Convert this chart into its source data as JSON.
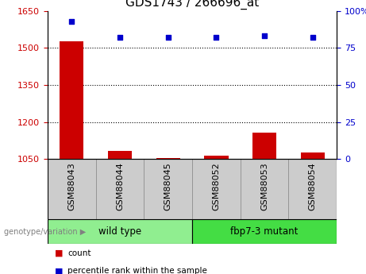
{
  "title": "GDS1743 / 266696_at",
  "samples": [
    "GSM88043",
    "GSM88044",
    "GSM88045",
    "GSM88052",
    "GSM88053",
    "GSM88054"
  ],
  "groups": [
    {
      "label": "wild type",
      "indices": [
        0,
        1,
        2
      ],
      "color": "#90EE90"
    },
    {
      "label": "fbp7-3 mutant",
      "indices": [
        3,
        4,
        5
      ],
      "color": "#44DD44"
    }
  ],
  "count_values": [
    1527,
    1082,
    1055,
    1062,
    1155,
    1075
  ],
  "percentile_values": [
    93,
    82,
    82,
    82,
    83,
    82
  ],
  "ylim_left": [
    1050,
    1650
  ],
  "yticks_left": [
    1050,
    1200,
    1350,
    1500,
    1650
  ],
  "ylim_right": [
    0,
    100
  ],
  "yticks_right": [
    0,
    25,
    50,
    75,
    100
  ],
  "bar_color": "#CC0000",
  "dot_color": "#0000CC",
  "bar_width": 0.5,
  "genotype_label": "genotype/variation",
  "legend_count": "count",
  "legend_percentile": "percentile rank within the sample",
  "left_tick_color": "#CC0000",
  "right_tick_color": "#0000CC",
  "title_fontsize": 11,
  "axis_fontsize": 8,
  "tick_fontsize": 8,
  "gray_box_color": "#CCCCCC",
  "gray_box_edge": "#888888"
}
